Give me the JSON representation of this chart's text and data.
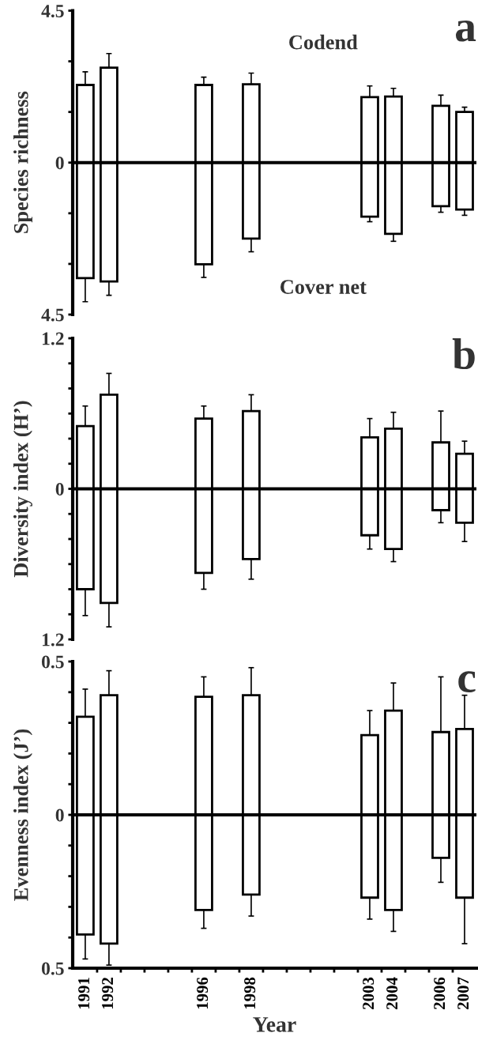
{
  "chart_data": [
    {
      "type": "bar",
      "stacked": true,
      "title": "a",
      "ylabel": "Species richness",
      "x": [
        1991,
        1992,
        1996,
        1998,
        2003,
        2004,
        2006,
        2007
      ],
      "xlim": [
        1990.47,
        2007.5
      ],
      "tick_labels": "y",
      "ylim": [
        -4.5,
        4.5
      ],
      "yticks": [
        {
          "value": -4.5,
          "label": "4.5"
        },
        {
          "value": -3,
          "label": null
        },
        {
          "value": -1.5,
          "label": null
        },
        0,
        {
          "value": 1.5,
          "label": null
        },
        {
          "value": 3,
          "label": null
        },
        4.5
      ],
      "ref_lines": [
        {
          "axis": "y",
          "value": 0,
          "label": null,
          "color": "#000000"
        }
      ],
      "series": [
        {
          "name": "Codend",
          "color": "#ffffff",
          "values": [
            2.3,
            2.81,
            2.3,
            2.32,
            1.94,
            1.96,
            1.68,
            1.5
          ],
          "errors": [
            [
              2.3,
              2.69
            ],
            [
              2.81,
              3.23
            ],
            [
              2.3,
              2.53
            ],
            [
              2.32,
              2.65
            ],
            [
              1.94,
              2.27
            ],
            [
              1.96,
              2.2
            ],
            [
              1.68,
              2.0
            ],
            [
              1.5,
              1.64
            ]
          ]
        },
        {
          "name": "Cover net",
          "color": "#ffffff",
          "values": [
            -3.42,
            -3.52,
            -3.01,
            -2.25,
            -1.6,
            -2.11,
            -1.29,
            -1.39
          ],
          "errors": [
            [
              -4.12,
              -3.42
            ],
            [
              -3.93,
              -3.52
            ],
            [
              -3.4,
              -3.01
            ],
            [
              -2.64,
              -2.25
            ],
            [
              -1.75,
              -1.6
            ],
            [
              -2.33,
              -2.11
            ],
            [
              -1.47,
              -1.29
            ],
            [
              -1.56,
              -1.39
            ]
          ]
        }
      ]
    },
    {
      "type": "bar",
      "stacked": true,
      "title": "b",
      "ylabel": "Diversity index (H’)",
      "x": [
        1991,
        1992,
        1996,
        1998,
        2003,
        2004,
        2006,
        2007
      ],
      "xlim": [
        1990.47,
        2007.5
      ],
      "tick_labels": "y",
      "ylim": [
        -1.2,
        1.2
      ],
      "yticks": [
        {
          "value": -1.2,
          "label": "1.2"
        },
        {
          "value": -1.0,
          "label": null
        },
        {
          "value": -0.8,
          "label": null
        },
        {
          "value": -0.6,
          "label": null
        },
        {
          "value": -0.4,
          "label": null
        },
        {
          "value": -0.2,
          "label": null
        },
        0,
        {
          "value": 0.2,
          "label": null
        },
        {
          "value": 0.4,
          "label": null
        },
        {
          "value": 0.6,
          "label": null
        },
        {
          "value": 0.8,
          "label": null
        },
        {
          "value": 1.0,
          "label": null
        },
        1.2
      ],
      "ref_lines": [
        {
          "axis": "y",
          "value": 0,
          "label": null,
          "color": "#000000"
        }
      ],
      "series": [
        {
          "color": "#ffffff",
          "values": [
            0.5,
            0.75,
            0.56,
            0.62,
            0.41,
            0.48,
            0.37,
            0.28
          ],
          "errors": [
            [
              0.5,
              0.66
            ],
            [
              0.75,
              0.92
            ],
            [
              0.56,
              0.66
            ],
            [
              0.62,
              0.75
            ],
            [
              0.41,
              0.56
            ],
            [
              0.48,
              0.61
            ],
            [
              0.37,
              0.62
            ],
            [
              0.28,
              0.38
            ]
          ]
        },
        {
          "color": "#ffffff",
          "values": [
            -0.8,
            -0.91,
            -0.67,
            -0.56,
            -0.37,
            -0.48,
            -0.17,
            -0.27
          ],
          "errors": [
            [
              -1.01,
              -0.8
            ],
            [
              -1.1,
              -0.91
            ],
            [
              -0.8,
              -0.67
            ],
            [
              -0.72,
              -0.56
            ],
            [
              -0.48,
              -0.37
            ],
            [
              -0.58,
              -0.48
            ],
            [
              -0.27,
              -0.17
            ],
            [
              -0.42,
              -0.27
            ]
          ]
        }
      ]
    },
    {
      "type": "bar",
      "stacked": true,
      "title": "c",
      "ylabel": "Evenness index (J’)",
      "xlabel": "Year",
      "x": [
        1991,
        1992,
        1996,
        1998,
        2003,
        2004,
        2006,
        2007
      ],
      "xlim": [
        1990.47,
        2007.5
      ],
      "ylim": [
        -0.5,
        0.5
      ],
      "xticks": [
        1991,
        1992,
        1996,
        1998,
        2003,
        2004,
        2006,
        2007,
        {
          "value": 1991.5,
          "label": null
        },
        {
          "value": 1992.5,
          "label": null
        },
        {
          "value": 1993.5,
          "label": null
        },
        {
          "value": 1994.5,
          "label": null
        },
        {
          "value": 1995.5,
          "label": null
        },
        {
          "value": 1996.5,
          "label": null
        },
        {
          "value": 1997.5,
          "label": null
        },
        {
          "value": 1998.5,
          "label": null
        },
        {
          "value": 1999.5,
          "label": null
        },
        {
          "value": 2000.5,
          "label": null
        },
        {
          "value": 2001.5,
          "label": null
        },
        {
          "value": 2002.5,
          "label": null
        },
        {
          "value": 2003.5,
          "label": null
        },
        {
          "value": 2004.5,
          "label": null
        },
        {
          "value": 2005.5,
          "label": null
        },
        {
          "value": 2006.5,
          "label": null
        }
      ],
      "yticks": [
        {
          "value": -0.5,
          "label": "0.5"
        },
        {
          "value": -0.4,
          "label": null
        },
        {
          "value": -0.3,
          "label": null
        },
        {
          "value": -0.2,
          "label": null
        },
        {
          "value": -0.1,
          "label": null
        },
        0,
        {
          "value": 0.1,
          "label": null
        },
        {
          "value": 0.2,
          "label": null
        },
        {
          "value": 0.3,
          "label": null
        },
        {
          "value": 0.4,
          "label": null
        },
        0.5
      ],
      "ref_lines": [
        {
          "axis": "y",
          "value": 0,
          "label": null,
          "color": "#000000"
        }
      ],
      "series": [
        {
          "color": "#ffffff",
          "values": [
            0.32,
            0.39,
            0.385,
            0.39,
            0.26,
            0.34,
            0.27,
            0.28
          ],
          "errors": [
            [
              0.32,
              0.41
            ],
            [
              0.39,
              0.47
            ],
            [
              0.385,
              0.45
            ],
            [
              0.39,
              0.48
            ],
            [
              0.26,
              0.34
            ],
            [
              0.34,
              0.43
            ],
            [
              0.27,
              0.45
            ],
            [
              0.28,
              0.39
            ]
          ]
        },
        {
          "color": "#ffffff",
          "values": [
            -0.39,
            -0.42,
            -0.31,
            -0.26,
            -0.27,
            -0.31,
            -0.14,
            -0.27
          ],
          "errors": [
            [
              -0.47,
              -0.39
            ],
            [
              -0.49,
              -0.42
            ],
            [
              -0.37,
              -0.31
            ],
            [
              -0.33,
              -0.26
            ],
            [
              -0.34,
              -0.27
            ],
            [
              -0.38,
              -0.31
            ],
            [
              -0.22,
              -0.14
            ],
            [
              -0.42,
              -0.27
            ]
          ]
        }
      ]
    }
  ]
}
